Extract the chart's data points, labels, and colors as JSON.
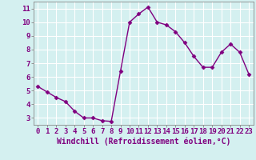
{
  "x": [
    0,
    1,
    2,
    3,
    4,
    5,
    6,
    7,
    8,
    9,
    10,
    11,
    12,
    13,
    14,
    15,
    16,
    17,
    18,
    19,
    20,
    21,
    22,
    23
  ],
  "y": [
    5.3,
    4.9,
    4.5,
    4.2,
    3.5,
    3.0,
    3.0,
    2.8,
    2.75,
    6.4,
    10.0,
    10.6,
    11.1,
    10.0,
    9.8,
    9.3,
    8.5,
    7.5,
    6.7,
    6.7,
    7.8,
    8.4,
    7.8,
    6.2
  ],
  "line_color": "#800080",
  "marker": "D",
  "markersize": 2.5,
  "linewidth": 1.0,
  "bg_color": "#d4f0f0",
  "grid_color": "#ffffff",
  "xlabel": "Windchill (Refroidissement éolien,°C)",
  "xlabel_fontsize": 7,
  "tick_fontsize": 6.5,
  "xlim": [
    -0.5,
    23.5
  ],
  "ylim": [
    2.5,
    11.5
  ],
  "yticks": [
    3,
    4,
    5,
    6,
    7,
    8,
    9,
    10,
    11
  ],
  "xticks": [
    0,
    1,
    2,
    3,
    4,
    5,
    6,
    7,
    8,
    9,
    10,
    11,
    12,
    13,
    14,
    15,
    16,
    17,
    18,
    19,
    20,
    21,
    22,
    23
  ]
}
